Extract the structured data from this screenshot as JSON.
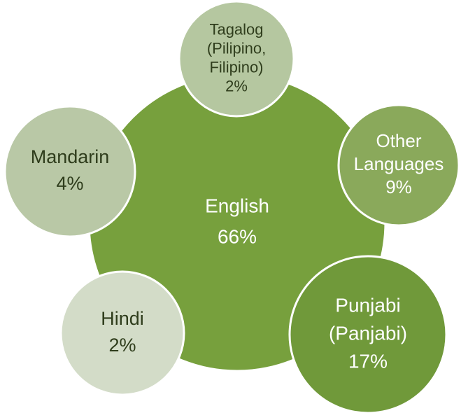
{
  "nodes": [
    {
      "lines": [
        "English"
      ],
      "value": "66%"
    },
    {
      "lines": [
        "Tagalog",
        "(Pilipino,",
        "Filipino)"
      ],
      "value": "2%"
    },
    {
      "lines": [
        "Other",
        "Languages"
      ],
      "value": "9%"
    },
    {
      "lines": [
        "Punjabi",
        "(Panjabi)"
      ],
      "value": "17%"
    },
    {
      "lines": [
        "Hindi"
      ],
      "value": "2%"
    },
    {
      "lines": [
        "Mandarin"
      ],
      "value": "4%"
    }
  ]
}
